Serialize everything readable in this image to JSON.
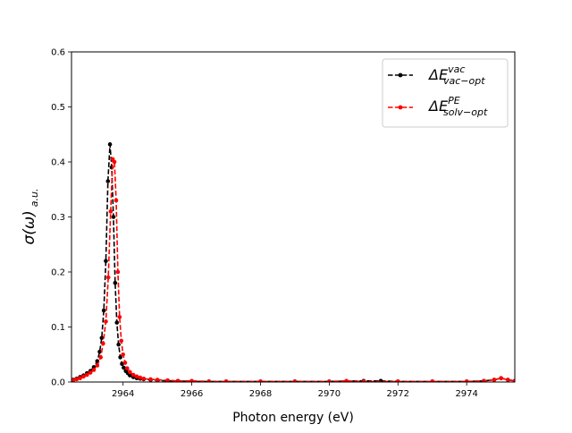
{
  "chart_data": {
    "type": "line",
    "title": "",
    "xlabel": "Photon energy (eV)",
    "ylabel": {
      "main": "σ(ω)",
      "subscript": "a.u."
    },
    "xlim": [
      2962.5,
      2975.4
    ],
    "ylim": [
      0,
      0.6
    ],
    "xticks": [
      2964,
      2966,
      2968,
      2970,
      2972,
      2974
    ],
    "yticks": [
      0.0,
      0.1,
      0.2,
      0.3,
      0.4,
      0.5,
      0.6
    ],
    "ytick_labels": [
      "0.0",
      "0.1",
      "0.2",
      "0.3",
      "0.4",
      "0.5",
      "0.6"
    ],
    "grid": false,
    "legend_position": "top-right",
    "series": [
      {
        "name": "vac",
        "legend": {
          "base": "ΔE",
          "sup": "vac",
          "sub": "vac−opt"
        },
        "color": "#000000",
        "x": [
          2962.55,
          2962.65,
          2962.75,
          2962.85,
          2962.95,
          2963.05,
          2963.15,
          2963.25,
          2963.32,
          2963.38,
          2963.44,
          2963.5,
          2963.56,
          2963.62,
          2963.67,
          2963.72,
          2963.77,
          2963.82,
          2963.87,
          2963.92,
          2963.97,
          2964.02,
          2964.08,
          2964.14,
          2964.2,
          2964.3,
          2964.4,
          2964.5,
          2964.6,
          2964.8,
          2965.0,
          2965.3,
          2965.6,
          2966.0,
          2966.5,
          2967.0,
          2968.0,
          2969.0,
          2970.0,
          2971.0,
          2971.5,
          2972.0,
          2973.0,
          2974.0,
          2974.5,
          2974.8,
          2975.0,
          2975.2,
          2975.4
        ],
        "values": [
          0.004,
          0.006,
          0.009,
          0.012,
          0.016,
          0.02,
          0.027,
          0.038,
          0.055,
          0.08,
          0.13,
          0.22,
          0.365,
          0.432,
          0.39,
          0.3,
          0.18,
          0.108,
          0.068,
          0.045,
          0.033,
          0.026,
          0.02,
          0.016,
          0.012,
          0.009,
          0.007,
          0.006,
          0.005,
          0.004,
          0.003,
          0.002,
          0.002,
          0.001,
          0.001,
          0.001,
          0.001,
          0.001,
          0.001,
          0.002,
          0.002,
          0.001,
          0.001,
          0.001,
          0.002,
          0.004,
          0.007,
          0.004,
          0.002
        ]
      },
      {
        "name": "solv",
        "legend": {
          "base": "ΔE",
          "sup": "PE",
          "sub": "solv−opt"
        },
        "color": "#ff0000",
        "x": [
          2962.55,
          2962.65,
          2962.75,
          2962.85,
          2962.95,
          2963.05,
          2963.15,
          2963.25,
          2963.35,
          2963.42,
          2963.5,
          2963.57,
          2963.64,
          2963.7,
          2963.75,
          2963.8,
          2963.85,
          2963.9,
          2963.95,
          2964.0,
          2964.06,
          2964.12,
          2964.2,
          2964.3,
          2964.4,
          2964.5,
          2964.6,
          2964.8,
          2965.0,
          2965.3,
          2965.6,
          2966.0,
          2966.5,
          2967.0,
          2968.0,
          2969.0,
          2970.0,
          2970.5,
          2971.0,
          2972.0,
          2973.0,
          2974.0,
          2974.5,
          2974.8,
          2975.0,
          2975.2,
          2975.4
        ],
        "values": [
          0.003,
          0.005,
          0.007,
          0.01,
          0.013,
          0.017,
          0.022,
          0.03,
          0.045,
          0.07,
          0.11,
          0.19,
          0.31,
          0.405,
          0.4,
          0.33,
          0.2,
          0.118,
          0.075,
          0.05,
          0.035,
          0.025,
          0.018,
          0.013,
          0.01,
          0.008,
          0.006,
          0.005,
          0.004,
          0.003,
          0.002,
          0.002,
          0.001,
          0.001,
          0.001,
          0.001,
          0.001,
          0.002,
          0.001,
          0.001,
          0.001,
          0.001,
          0.002,
          0.004,
          0.007,
          0.004,
          0.002
        ]
      }
    ]
  }
}
